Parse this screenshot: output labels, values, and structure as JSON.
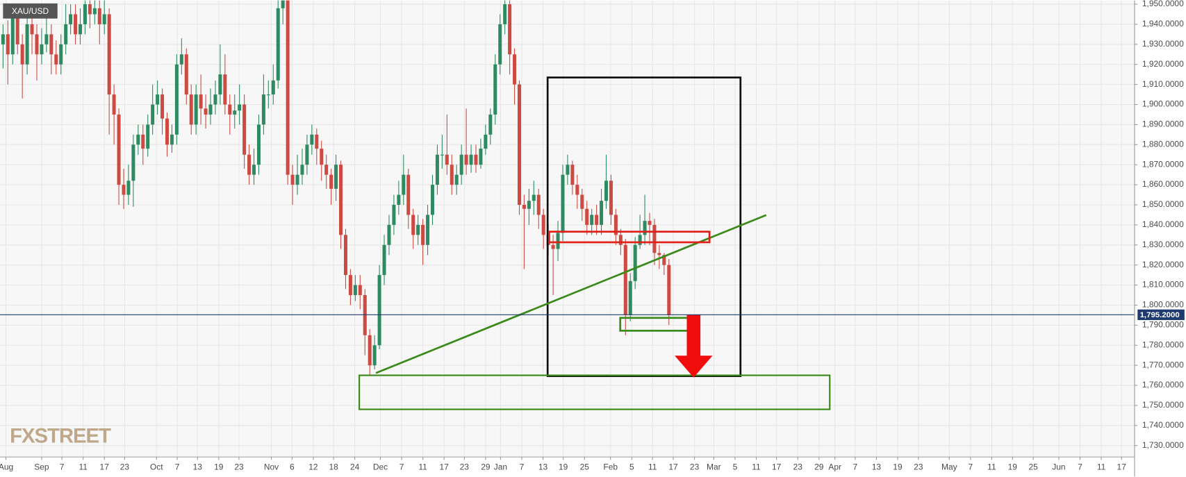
{
  "chart_data": {
    "type": "candlestick",
    "symbol": "XAU/USD",
    "logo": "FXSTREET",
    "up_color": "#2e8b61",
    "down_color": "#cd4a43",
    "grid": true,
    "open": [
      1930,
      1935,
      1925,
      1945,
      1930,
      1920,
      1940,
      1935,
      1925,
      1930,
      1935,
      1925,
      1920,
      1930,
      1940,
      1945,
      1935,
      1940,
      1950,
      1945,
      1948,
      1940,
      1945,
      1905,
      1895,
      1860,
      1855,
      1862,
      1880,
      1885,
      1878,
      1890,
      1900,
      1905,
      1893,
      1880,
      1885,
      1920,
      1925,
      1905,
      1890,
      1905,
      1898,
      1895,
      1900,
      1905,
      1915,
      1900,
      1895,
      1897,
      1900,
      1875,
      1865,
      1870,
      1890,
      1905,
      1905,
      1912,
      1948,
      1955,
      1865,
      1860,
      1865,
      1870,
      1880,
      1885,
      1878,
      1870,
      1865,
      1858,
      1870,
      1835,
      1815,
      1805,
      1810,
      1805,
      1785,
      1770,
      1780,
      1815,
      1830,
      1840,
      1850,
      1855,
      1865,
      1845,
      1835,
      1840,
      1830,
      1845,
      1860,
      1875,
      1875,
      1870,
      1860,
      1865,
      1875,
      1870,
      1875,
      1870,
      1878,
      1885,
      1895,
      1920,
      1940,
      1950,
      1925,
      1910,
      1850,
      1848,
      1852,
      1855,
      1845,
      1835,
      1830,
      1828,
      1836,
      1865,
      1870,
      1860,
      1855,
      1848,
      1840,
      1845,
      1840,
      1852,
      1862,
      1845,
      1835,
      1830,
      1795,
      1812,
      1830,
      1835,
      1842,
      1840,
      1826,
      1825,
      1820
    ],
    "high": [
      1940,
      1942,
      1950,
      1948,
      1935,
      1946,
      1945,
      1940,
      1938,
      1950,
      1940,
      1932,
      1935,
      1950,
      1950,
      1950,
      1948,
      1955,
      1955,
      1955,
      1952,
      1952,
      1948,
      1910,
      1898,
      1868,
      1870,
      1885,
      1890,
      1890,
      1895,
      1910,
      1912,
      1908,
      1896,
      1890,
      1925,
      1933,
      1928,
      1910,
      1910,
      1915,
      1905,
      1908,
      1912,
      1930,
      1925,
      1905,
      1905,
      1910,
      1905,
      1880,
      1878,
      1895,
      1915,
      1912,
      1920,
      1952,
      1960,
      1958,
      1870,
      1875,
      1878,
      1885,
      1890,
      1888,
      1882,
      1875,
      1868,
      1875,
      1872,
      1838,
      1818,
      1815,
      1815,
      1808,
      1788,
      1785,
      1820,
      1835,
      1845,
      1855,
      1862,
      1875,
      1868,
      1848,
      1845,
      1843,
      1850,
      1865,
      1880,
      1885,
      1895,
      1875,
      1870,
      1880,
      1898,
      1880,
      1880,
      1883,
      1890,
      1898,
      1925,
      1945,
      1955,
      1953,
      1928,
      1912,
      1855,
      1858,
      1862,
      1858,
      1848,
      1840,
      1835,
      1842,
      1870,
      1875,
      1872,
      1865,
      1858,
      1852,
      1848,
      1850,
      1858,
      1875,
      1865,
      1848,
      1838,
      1833,
      1816,
      1834,
      1845,
      1855,
      1846,
      1843,
      1830,
      1826,
      1823
    ],
    "low": [
      1918,
      1910,
      1920,
      1925,
      1903,
      1915,
      1925,
      1912,
      1920,
      1926,
      1915,
      1915,
      1915,
      1925,
      1935,
      1930,
      1930,
      1935,
      1938,
      1940,
      1930,
      1935,
      1885,
      1880,
      1850,
      1848,
      1850,
      1849,
      1875,
      1870,
      1874,
      1885,
      1895,
      1885,
      1874,
      1876,
      1880,
      1915,
      1900,
      1885,
      1885,
      1890,
      1888,
      1890,
      1895,
      1900,
      1895,
      1885,
      1888,
      1890,
      1868,
      1860,
      1860,
      1865,
      1885,
      1898,
      1900,
      1908,
      1940,
      1860,
      1850,
      1855,
      1860,
      1865,
      1875,
      1870,
      1862,
      1858,
      1850,
      1852,
      1828,
      1808,
      1800,
      1802,
      1798,
      1775,
      1765,
      1768,
      1778,
      1810,
      1825,
      1835,
      1845,
      1850,
      1838,
      1828,
      1830,
      1820,
      1825,
      1840,
      1855,
      1868,
      1865,
      1855,
      1855,
      1860,
      1865,
      1866,
      1866,
      1868,
      1875,
      1880,
      1890,
      1915,
      1935,
      1915,
      1900,
      1845,
      1818,
      1840,
      1845,
      1838,
      1828,
      1825,
      1805,
      1822,
      1832,
      1860,
      1855,
      1848,
      1842,
      1835,
      1835,
      1835,
      1835,
      1848,
      1840,
      1830,
      1825,
      1785,
      1792,
      1808,
      1828,
      1830,
      1830,
      1820,
      1818,
      1815,
      1790
    ],
    "close": [
      1935,
      1925,
      1945,
      1930,
      1920,
      1940,
      1935,
      1925,
      1930,
      1935,
      1925,
      1920,
      1930,
      1940,
      1945,
      1935,
      1940,
      1950,
      1945,
      1948,
      1940,
      1945,
      1905,
      1895,
      1860,
      1855,
      1862,
      1880,
      1885,
      1878,
      1890,
      1900,
      1905,
      1893,
      1880,
      1885,
      1920,
      1925,
      1905,
      1890,
      1905,
      1898,
      1895,
      1900,
      1905,
      1915,
      1900,
      1895,
      1897,
      1900,
      1875,
      1865,
      1870,
      1890,
      1905,
      1905,
      1912,
      1948,
      1955,
      1865,
      1860,
      1865,
      1870,
      1880,
      1885,
      1878,
      1870,
      1865,
      1858,
      1870,
      1835,
      1815,
      1805,
      1810,
      1805,
      1785,
      1770,
      1780,
      1815,
      1830,
      1840,
      1850,
      1855,
      1865,
      1845,
      1835,
      1840,
      1830,
      1845,
      1860,
      1875,
      1875,
      1870,
      1860,
      1865,
      1875,
      1870,
      1875,
      1870,
      1878,
      1885,
      1895,
      1920,
      1940,
      1950,
      1925,
      1910,
      1850,
      1848,
      1852,
      1855,
      1845,
      1835,
      1830,
      1828,
      1836,
      1865,
      1870,
      1860,
      1855,
      1848,
      1840,
      1845,
      1840,
      1852,
      1862,
      1845,
      1835,
      1830,
      1795,
      1812,
      1830,
      1835,
      1842,
      1840,
      1826,
      1825,
      1820,
      1795
    ],
    "current_price": {
      "value": 1795.2,
      "label": "1,795.2000"
    },
    "ylim": [
      1724.7,
      1951.9
    ],
    "yticks": [
      {
        "value": 1730,
        "label": "1,730.0000"
      },
      {
        "value": 1740,
        "label": "1,740.0000"
      },
      {
        "value": 1750,
        "label": "1,750.0000"
      },
      {
        "value": 1760,
        "label": "1,760.0000"
      },
      {
        "value": 1770,
        "label": "1,770.0000"
      },
      {
        "value": 1780,
        "label": "1,780.0000"
      },
      {
        "value": 1790,
        "label": "1,790.0000"
      },
      {
        "value": 1800,
        "label": "1,800.0000"
      },
      {
        "value": 1810,
        "label": "1,810.0000"
      },
      {
        "value": 1820,
        "label": "1,820.0000"
      },
      {
        "value": 1830,
        "label": "1,830.0000"
      },
      {
        "value": 1840,
        "label": "1,840.0000"
      },
      {
        "value": 1850,
        "label": "1,850.0000"
      },
      {
        "value": 1860,
        "label": "1,860.0000"
      },
      {
        "value": 1870,
        "label": "1,870.0000"
      },
      {
        "value": 1880,
        "label": "1,880.0000"
      },
      {
        "value": 1890,
        "label": "1,890.0000"
      },
      {
        "value": 1900,
        "label": "1,900.0000"
      },
      {
        "value": 1910,
        "label": "1,910.0000"
      },
      {
        "value": 1920,
        "label": "1,920.0000"
      },
      {
        "value": 1930,
        "label": "1,930.0000"
      },
      {
        "value": 1940,
        "label": "1,940.0000"
      },
      {
        "value": 1950,
        "label": "1,950.0000"
      }
    ],
    "xlim": [
      -0.63,
      234.5
    ],
    "xticks": [
      {
        "value": 0.6,
        "label": "Aug"
      },
      {
        "value": 8.0,
        "label": "Sep"
      },
      {
        "value": 12.2,
        "label": "7"
      },
      {
        "value": 16.6,
        "label": "11"
      },
      {
        "value": 21.0,
        "label": "17"
      },
      {
        "value": 25.2,
        "label": "23"
      },
      {
        "value": 31.8,
        "label": "Oct"
      },
      {
        "value": 36.1,
        "label": "7"
      },
      {
        "value": 40.3,
        "label": "13"
      },
      {
        "value": 44.7,
        "label": "19"
      },
      {
        "value": 48.9,
        "label": "23"
      },
      {
        "value": 55.6,
        "label": "Nov"
      },
      {
        "value": 59.9,
        "label": "6"
      },
      {
        "value": 64.3,
        "label": "12"
      },
      {
        "value": 68.5,
        "label": "18"
      },
      {
        "value": 72.9,
        "label": "24"
      },
      {
        "value": 78.2,
        "label": "Dec"
      },
      {
        "value": 82.6,
        "label": "7"
      },
      {
        "value": 87.0,
        "label": "11"
      },
      {
        "value": 91.4,
        "label": "17"
      },
      {
        "value": 95.6,
        "label": "23"
      },
      {
        "value": 100.0,
        "label": "29"
      },
      {
        "value": 103.1,
        "label": "Jan"
      },
      {
        "value": 107.5,
        "label": "7"
      },
      {
        "value": 111.9,
        "label": "13"
      },
      {
        "value": 116.1,
        "label": "19"
      },
      {
        "value": 120.5,
        "label": "25"
      },
      {
        "value": 125.9,
        "label": "Feb"
      },
      {
        "value": 130.3,
        "label": "5"
      },
      {
        "value": 134.6,
        "label": "11"
      },
      {
        "value": 138.9,
        "label": "17"
      },
      {
        "value": 143.3,
        "label": "23"
      },
      {
        "value": 147.3,
        "label": "Mar"
      },
      {
        "value": 151.7,
        "label": "5"
      },
      {
        "value": 156.1,
        "label": "11"
      },
      {
        "value": 160.3,
        "label": "17"
      },
      {
        "value": 164.7,
        "label": "23"
      },
      {
        "value": 169.1,
        "label": "29"
      },
      {
        "value": 172.4,
        "label": "Apr"
      },
      {
        "value": 176.6,
        "label": "7"
      },
      {
        "value": 181.0,
        "label": "13"
      },
      {
        "value": 185.4,
        "label": "19"
      },
      {
        "value": 189.7,
        "label": "23"
      },
      {
        "value": 196.1,
        "label": "May"
      },
      {
        "value": 200.5,
        "label": "7"
      },
      {
        "value": 204.9,
        "label": "11"
      },
      {
        "value": 209.2,
        "label": "19"
      },
      {
        "value": 213.5,
        "label": "25"
      },
      {
        "value": 218.8,
        "label": "Jun"
      },
      {
        "value": 223.2,
        "label": "7"
      },
      {
        "value": 227.6,
        "label": "11"
      },
      {
        "value": 231.8,
        "label": "17"
      }
    ]
  }
}
